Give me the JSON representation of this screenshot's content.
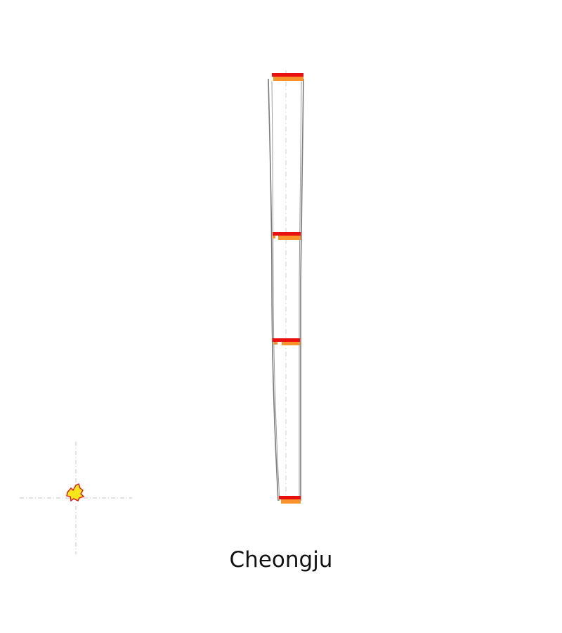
{
  "caption": "Cheongju",
  "colors": {
    "outline": "#7a7a7a",
    "guide": "#cfcfcf",
    "band_top": "#e8110f",
    "band_bottom": "#f7932a",
    "marker_fill": "#f5e61a",
    "marker_edge": "#e8110f"
  },
  "icons": {
    "marker": "small-flame-blob-icon"
  }
}
